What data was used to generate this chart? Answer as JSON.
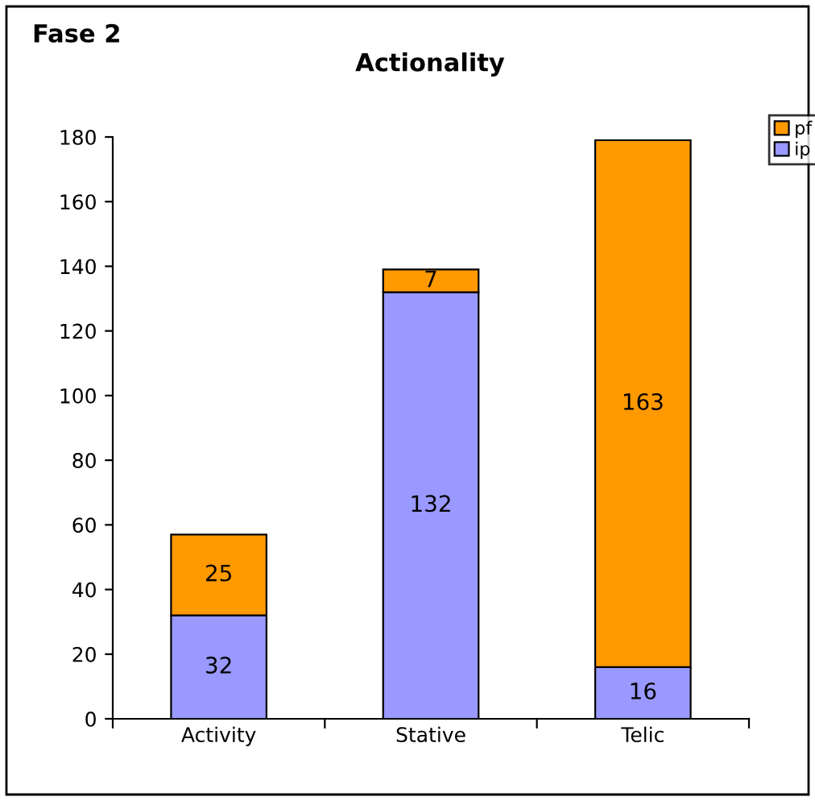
{
  "chart_data": {
    "type": "bar",
    "title": "Actionality",
    "annotations": [
      "Fase 2"
    ],
    "categories": [
      "Activity",
      "Stative",
      "Telic"
    ],
    "stacked": true,
    "series": [
      {
        "name": "ip",
        "color": "#9999ff",
        "values": [
          32,
          132,
          16
        ]
      },
      {
        "name": "pf",
        "color": "#ff9900",
        "values": [
          25,
          7,
          163
        ]
      }
    ],
    "ylim": [
      0,
      180
    ],
    "yticks": [
      0,
      20,
      40,
      60,
      80,
      100,
      120,
      140,
      160,
      180
    ],
    "data_labels": true,
    "grid": false,
    "legend": "top right"
  }
}
